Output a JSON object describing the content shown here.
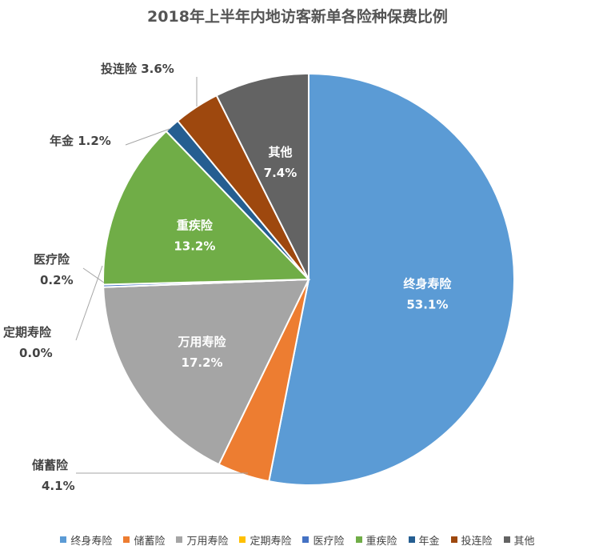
{
  "chart_data": {
    "type": "pie",
    "title": "2018年上半年内地访客新单各险种保费比例",
    "slices": [
      {
        "name": "终身寿险",
        "value": 53.1,
        "label": "53.1%",
        "color": "#5B9BD5"
      },
      {
        "name": "储蓄险",
        "value": 4.1,
        "label": "4.1%",
        "color": "#ED7D31"
      },
      {
        "name": "万用寿险",
        "value": 17.2,
        "label": "17.2%",
        "color": "#A5A5A5"
      },
      {
        "name": "定期寿险",
        "value": 0.0,
        "label": "0.0%",
        "color": "#FFC000"
      },
      {
        "name": "医疗险",
        "value": 0.2,
        "label": "0.2%",
        "color": "#4472C4"
      },
      {
        "name": "重疾险",
        "value": 13.2,
        "label": "13.2%",
        "color": "#70AD47"
      },
      {
        "name": "年金",
        "value": 1.2,
        "label": "1.2%",
        "color": "#255E91"
      },
      {
        "name": "投连险",
        "value": 3.6,
        "label": "3.6%",
        "color": "#9E480E"
      },
      {
        "name": "其他",
        "value": 7.4,
        "label": "7.4%",
        "color": "#636363"
      }
    ],
    "legend_position": "bottom"
  }
}
